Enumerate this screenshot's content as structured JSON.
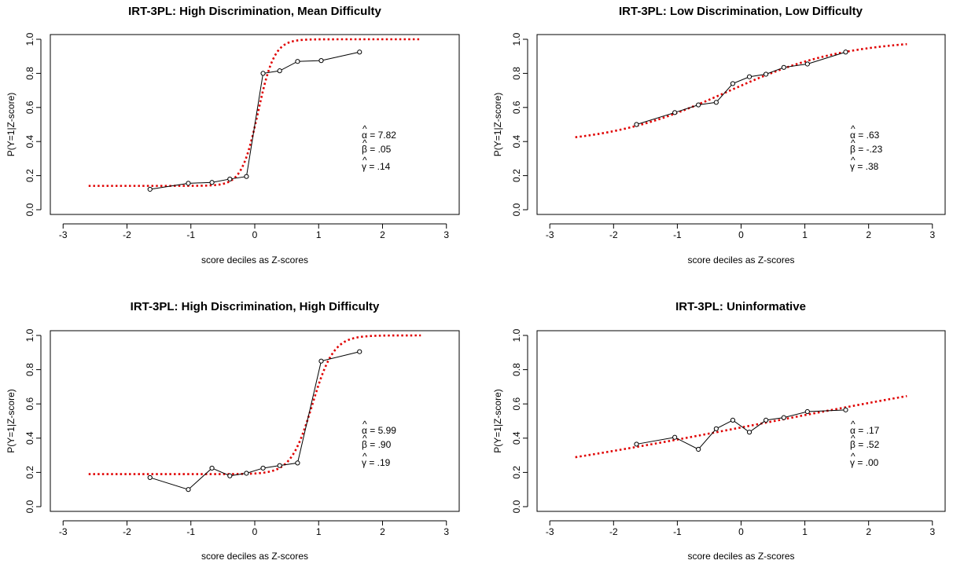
{
  "figure": {
    "xlabel": "score deciles as Z-scores",
    "ylabel": "P(Y=1|Z-score)"
  },
  "chart_data": [
    {
      "type": "line",
      "title": "IRT-3PL: High Discrimination, Mean Difficulty",
      "xlabel": "score deciles as Z-scores",
      "ylabel": "P(Y=1|Z-score)",
      "xlim": [
        -3.2,
        3.2
      ],
      "ylim": [
        0,
        1
      ],
      "xticks": [
        "-3",
        "-2",
        "-1",
        "0",
        "1",
        "2",
        "3"
      ],
      "yticks": [
        "0.0",
        "0.2",
        "0.4",
        "0.6",
        "0.8",
        "1.0"
      ],
      "params": {
        "alpha": "= 7.82",
        "beta": "= .05",
        "gamma": "= .14"
      },
      "model": {
        "alpha": 7.82,
        "beta": 0.05,
        "gamma": 0.14,
        "scale": 1.0,
        "x_range": [
          -2.6,
          2.6
        ],
        "color": "#e00000"
      },
      "observed": {
        "x": [
          -1.64,
          -1.04,
          -0.67,
          -0.39,
          -0.13,
          0.13,
          0.39,
          0.67,
          1.04,
          1.64
        ],
        "y": [
          0.12,
          0.155,
          0.16,
          0.18,
          0.195,
          0.8,
          0.815,
          0.87,
          0.875,
          0.925
        ]
      }
    },
    {
      "type": "line",
      "title": "IRT-3PL: Low Discrimination, Low Difficulty",
      "xlabel": "score deciles as Z-scores",
      "ylabel": "P(Y=1|Z-score)",
      "xlim": [
        -3.2,
        3.2
      ],
      "ylim": [
        0,
        1
      ],
      "xticks": [
        "-3",
        "-2",
        "-1",
        "0",
        "1",
        "2",
        "3"
      ],
      "yticks": [
        "0.0",
        "0.2",
        "0.4",
        "0.6",
        "0.8",
        "1.0"
      ],
      "params": {
        "alpha": "= .63",
        "beta": "= -.23",
        "gamma": "= .38"
      },
      "model": {
        "alpha": 0.63,
        "beta": -0.23,
        "gamma": 0.38,
        "scale": 1.7,
        "x_range": [
          -2.6,
          2.6
        ],
        "color": "#e00000"
      },
      "observed": {
        "x": [
          -1.64,
          -1.04,
          -0.67,
          -0.39,
          -0.13,
          0.13,
          0.39,
          0.67,
          1.04,
          1.64
        ],
        "y": [
          0.5,
          0.57,
          0.615,
          0.63,
          0.74,
          0.78,
          0.795,
          0.835,
          0.855,
          0.925
        ]
      }
    },
    {
      "type": "line",
      "title": "IRT-3PL: High Discrimination, High Difficulty",
      "xlabel": "score deciles as Z-scores",
      "ylabel": "P(Y=1|Z-score)",
      "xlim": [
        -3.2,
        3.2
      ],
      "ylim": [
        0,
        1
      ],
      "xticks": [
        "-3",
        "-2",
        "-1",
        "0",
        "1",
        "2",
        "3"
      ],
      "yticks": [
        "0.0",
        "0.2",
        "0.4",
        "0.6",
        "0.8",
        "1.0"
      ],
      "params": {
        "alpha": "= 5.99",
        "beta": "= .90",
        "gamma": "= .19"
      },
      "model": {
        "alpha": 5.99,
        "beta": 0.9,
        "gamma": 0.19,
        "scale": 1.0,
        "x_range": [
          -2.6,
          2.6
        ],
        "color": "#e00000"
      },
      "observed": {
        "x": [
          -1.64,
          -1.04,
          -0.67,
          -0.39,
          -0.13,
          0.13,
          0.39,
          0.67,
          1.04,
          1.64
        ],
        "y": [
          0.17,
          0.1,
          0.225,
          0.18,
          0.195,
          0.225,
          0.24,
          0.255,
          0.85,
          0.905
        ]
      }
    },
    {
      "type": "line",
      "title": "IRT-3PL: Uninformative",
      "xlabel": "score deciles as Z-scores",
      "ylabel": "P(Y=1|Z-score)",
      "xlim": [
        -3.2,
        3.2
      ],
      "ylim": [
        0,
        1
      ],
      "xticks": [
        "-3",
        "-2",
        "-1",
        "0",
        "1",
        "2",
        "3"
      ],
      "yticks": [
        "0.0",
        "0.2",
        "0.4",
        "0.6",
        "0.8",
        "1.0"
      ],
      "params": {
        "alpha": "= .17",
        "beta": "= .52",
        "gamma": "= .00"
      },
      "model": {
        "alpha": 0.17,
        "beta": 0.52,
        "gamma": 0.0,
        "scale": 1.7,
        "x_range": [
          -2.6,
          2.6
        ],
        "color": "#e00000"
      },
      "observed": {
        "x": [
          -1.64,
          -1.04,
          -0.67,
          -0.39,
          -0.13,
          0.13,
          0.39,
          0.67,
          1.04,
          1.64
        ],
        "y": [
          0.365,
          0.405,
          0.335,
          0.455,
          0.505,
          0.435,
          0.505,
          0.52,
          0.555,
          0.565
        ]
      }
    }
  ]
}
